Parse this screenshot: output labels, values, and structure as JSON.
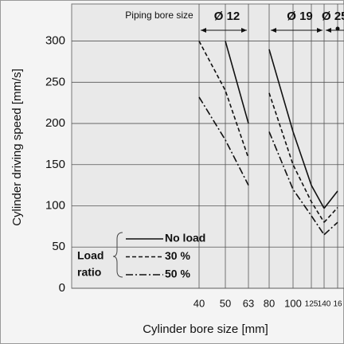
{
  "chart_data": {
    "type": "line",
    "x_label": "Cylinder bore size [mm]",
    "y_label": "Cylinder driving speed [mm/s]",
    "group_title": "Piping bore size",
    "categories": [
      "40",
      "50",
      "63",
      "80",
      "100",
      "125",
      "140",
      "16"
    ],
    "groups": [
      {
        "label": "Ø 12",
        "categories": [
          "40",
          "50",
          "63"
        ]
      },
      {
        "label": "Ø 19",
        "categories": [
          "80",
          "100",
          "125",
          "140"
        ]
      },
      {
        "label": "Ø 25",
        "categories": [
          "140",
          "16"
        ]
      }
    ],
    "ylim": [
      0,
      345
    ],
    "yticks": [
      0,
      50,
      100,
      150,
      200,
      250,
      300
    ],
    "grid": true,
    "legend_title": [
      "Load",
      "ratio"
    ],
    "legend_position": "lower left",
    "series": [
      {
        "name": "No load",
        "color": "#111111",
        "dash": "solid",
        "values": [
          null,
          300,
          200,
          290,
          190,
          125,
          97,
          118
        ]
      },
      {
        "name": "30 %",
        "color": "#111111",
        "dash": "dashed",
        "values": [
          300,
          240,
          158,
          237,
          150,
          105,
          80,
          98
        ]
      },
      {
        "name": "50 %",
        "color": "#111111",
        "dash": "dashdot",
        "values": [
          232,
          180,
          125,
          190,
          120,
          88,
          65,
          80
        ]
      }
    ]
  }
}
